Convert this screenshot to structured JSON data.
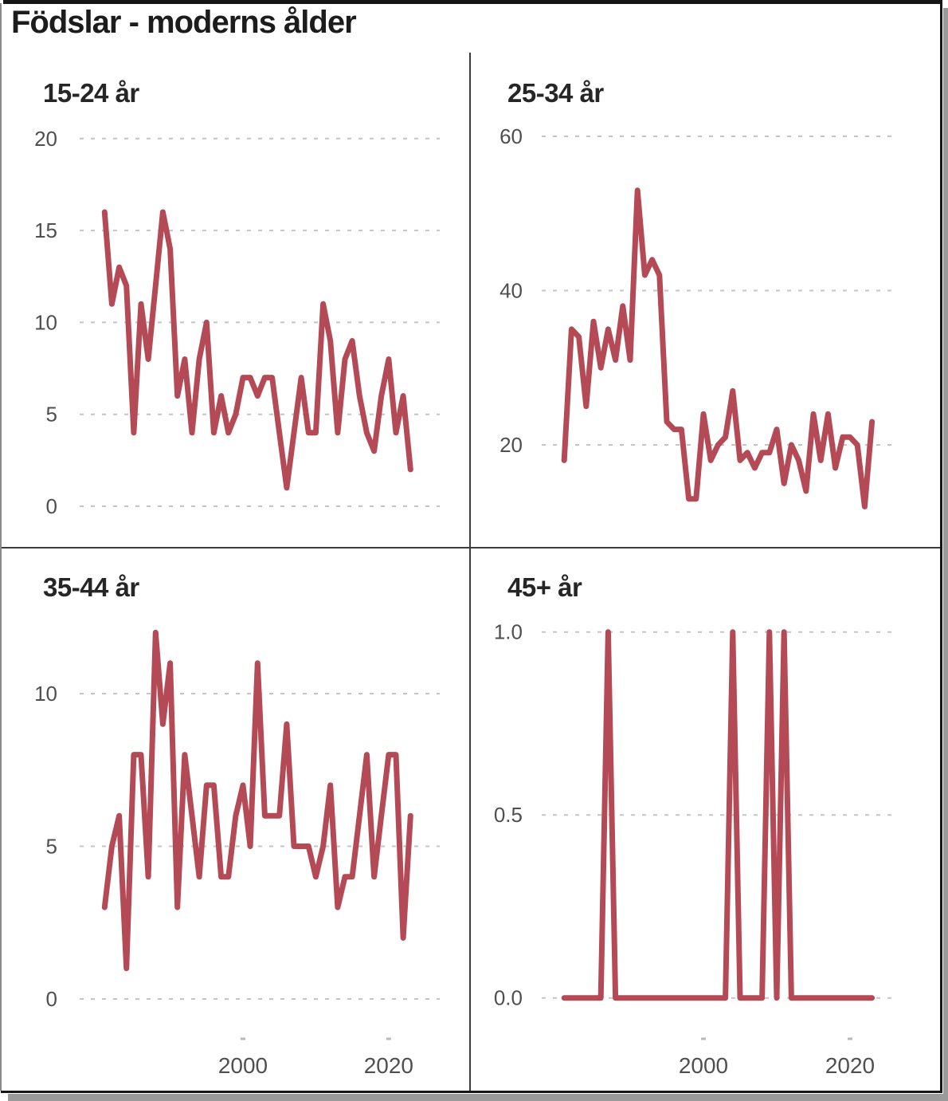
{
  "title": "Födslar - moderns ålder",
  "colors": {
    "line": "#b34a56",
    "gridline": "#c4c4c4",
    "axis_text": "#4f4f4f",
    "title_text": "#1c1c1c",
    "panel_title_text": "#262626",
    "divider": "#3c3c3c",
    "frame_border": "#161616",
    "frame_shadow": "#9a9a9a",
    "background": "#ffffff"
  },
  "chart_data": {
    "type": "line",
    "title": "Födslar - moderns ålder",
    "grid": "dashed horizontal only",
    "legend": "none",
    "x": [
      1981,
      1982,
      1983,
      1984,
      1985,
      1986,
      1987,
      1988,
      1989,
      1990,
      1991,
      1992,
      1993,
      1994,
      1995,
      1996,
      1997,
      1998,
      1999,
      2000,
      2001,
      2002,
      2003,
      2004,
      2005,
      2006,
      2007,
      2008,
      2009,
      2010,
      2011,
      2012,
      2013,
      2014,
      2015,
      2016,
      2017,
      2018,
      2019,
      2020,
      2021,
      2022,
      2023
    ],
    "x_axis_tick_labels": [
      "2000",
      "2020"
    ],
    "x_axis_tick_years": [
      2000,
      2020
    ],
    "facets": [
      {
        "title": "15-24 år",
        "y_tick_labels": [
          "20",
          "15",
          "10",
          "5",
          "0"
        ],
        "y_tick_values": [
          20,
          15,
          10,
          5,
          0
        ],
        "ylim": [
          0,
          20
        ],
        "values": [
          16,
          11,
          13,
          12,
          4,
          11,
          8,
          12,
          16,
          14,
          6,
          8,
          4,
          8,
          10,
          4,
          6,
          4,
          5,
          7,
          7,
          6,
          7,
          7,
          4,
          1,
          4,
          7,
          4,
          4,
          11,
          9,
          4,
          8,
          9,
          6,
          4,
          3,
          6,
          8,
          4,
          6,
          2
        ]
      },
      {
        "title": "25-34 år",
        "y_tick_labels": [
          "60",
          "40",
          "20"
        ],
        "y_tick_values": [
          60,
          40,
          20
        ],
        "ylim": [
          12,
          60
        ],
        "values": [
          18,
          35,
          34,
          25,
          36,
          30,
          35,
          31,
          38,
          31,
          53,
          42,
          44,
          42,
          23,
          22,
          22,
          13,
          13,
          24,
          18,
          20,
          21,
          27,
          18,
          19,
          17,
          19,
          19,
          22,
          15,
          20,
          18,
          14,
          24,
          18,
          24,
          17,
          21,
          21,
          20,
          12,
          23
        ]
      },
      {
        "title": "35-44 år",
        "y_tick_labels": [
          "10",
          "5",
          "0"
        ],
        "y_tick_values": [
          10,
          5,
          0
        ],
        "ylim": [
          0,
          12
        ],
        "values": [
          3,
          5,
          6,
          1,
          8,
          8,
          4,
          12,
          9,
          11,
          3,
          8,
          6,
          4,
          7,
          7,
          4,
          4,
          6,
          7,
          5,
          11,
          6,
          6,
          6,
          9,
          5,
          5,
          5,
          4,
          5,
          7,
          3,
          4,
          4,
          6,
          8,
          4,
          6,
          8,
          8,
          2,
          6
        ]
      },
      {
        "title": "45+ år",
        "y_tick_labels": [
          "1.0",
          "0.5",
          "0.0"
        ],
        "y_tick_values": [
          1.0,
          0.5,
          0.0
        ],
        "ylim": [
          0,
          1
        ],
        "values": [
          0,
          0,
          0,
          0,
          0,
          0,
          1,
          0,
          0,
          0,
          0,
          0,
          0,
          0,
          0,
          0,
          0,
          0,
          0,
          0,
          0,
          0,
          0,
          1,
          0,
          0,
          0,
          0,
          1,
          0,
          1,
          0,
          0,
          0,
          0,
          0,
          0,
          0,
          0,
          0,
          0,
          0,
          0
        ]
      }
    ]
  }
}
